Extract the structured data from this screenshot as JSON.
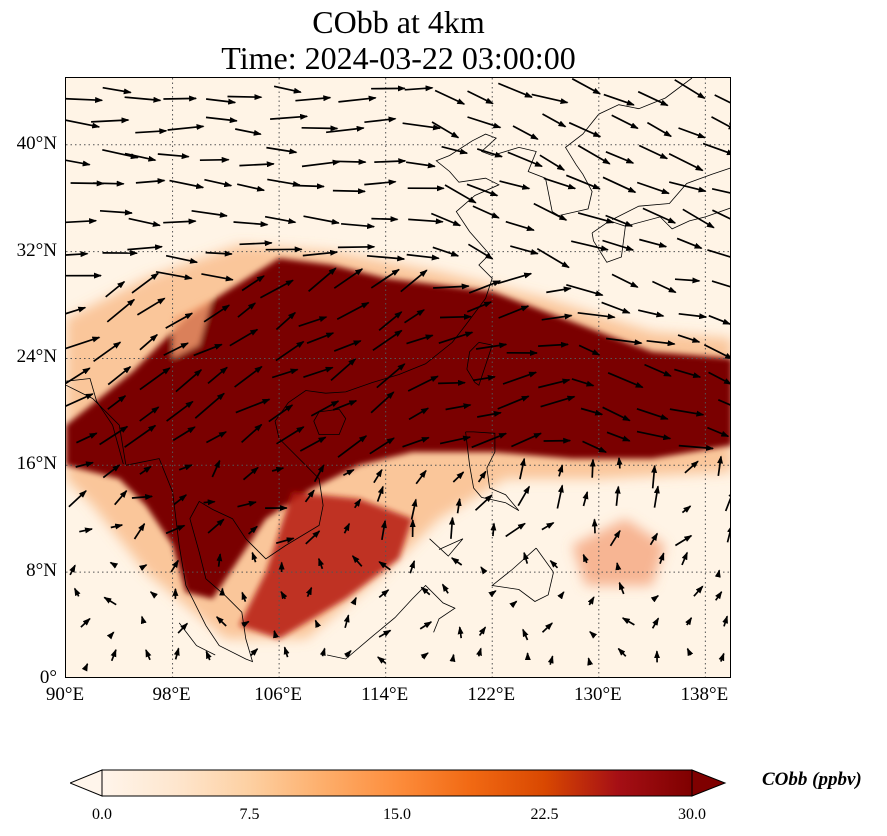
{
  "title_line1": "CObb at 4km",
  "title_line2": "Time: 2024-03-22 03:00:00",
  "map": {
    "lon_range": [
      90,
      140
    ],
    "lat_range": [
      0,
      45
    ],
    "lat_ticks": [
      "0°",
      "8°N",
      "16°N",
      "24°N",
      "32°N",
      "40°N"
    ],
    "lon_ticks": [
      "90°E",
      "98°E",
      "106°E",
      "114°E",
      "122°E",
      "130°E",
      "138°E"
    ],
    "gridlines": "dotted",
    "field_colors": {
      "low": "#fff4e6",
      "mid": "#f6a15c",
      "high": "#7a0000"
    },
    "vector_color": "#000000"
  },
  "colorbar": {
    "label": "CObb (ppbv)",
    "ticks": [
      "0.0",
      "7.5",
      "15.0",
      "22.5",
      "30.0"
    ],
    "min": 0,
    "max": 30,
    "colors": [
      "#fff5eb",
      "#fee6ce",
      "#fdd0a2",
      "#fdae6b",
      "#fd8d3c",
      "#f16913",
      "#d94801",
      "#a50f15",
      "#7f0000"
    ],
    "extend": "both"
  }
}
